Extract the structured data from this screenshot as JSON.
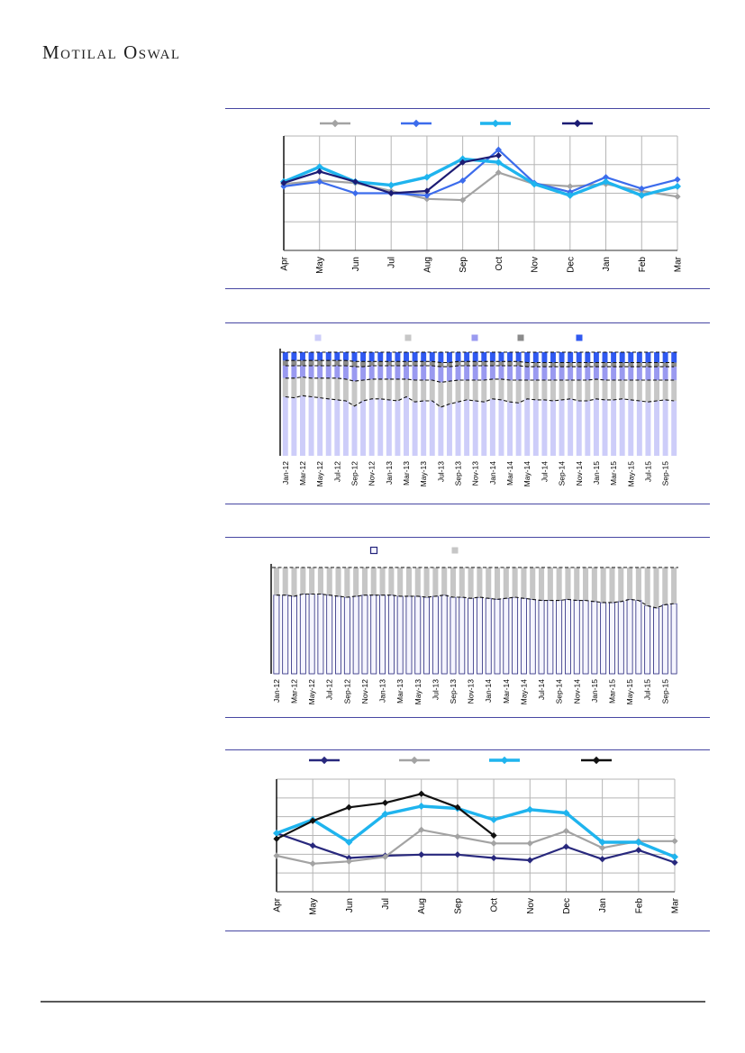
{
  "page": {
    "logo_text": "Motilal Oswal",
    "accent_line_color": "#4747a2",
    "footer_line_color": "#595959"
  },
  "chart_data": [
    {
      "id": "chart-1",
      "type": "line",
      "title": "",
      "xlabel": "",
      "ylabel": "",
      "ylim": [
        0,
        100
      ],
      "grid": true,
      "grid_rows": 4,
      "legend_position": "top",
      "legend_labels_visible": false,
      "y_axis_labels_visible": false,
      "categories": [
        "Apr",
        "May",
        "Jun",
        "Jul",
        "Aug",
        "Sep",
        "Oct",
        "Nov",
        "Dec",
        "Jan",
        "Feb",
        "Mar"
      ],
      "series": [
        {
          "name": "gray-line",
          "color": "#a3a3a3",
          "width": 2.2,
          "values": [
            58,
            61,
            59,
            52,
            45,
            44,
            68,
            58,
            56,
            58,
            52,
            47
          ]
        },
        {
          "name": "royal-blue-line",
          "color": "#3c6cec",
          "width": 2.2,
          "values": [
            56,
            60,
            50,
            50,
            48,
            61,
            88,
            59,
            51,
            64,
            54,
            62
          ]
        },
        {
          "name": "cyan-line",
          "color": "#1fb4ee",
          "width": 3.4,
          "values": [
            60,
            73,
            60,
            57,
            64,
            80,
            77,
            58,
            48,
            60,
            48,
            56
          ]
        },
        {
          "name": "navy-line",
          "color": "#1c1c74",
          "width": 2.2,
          "values": [
            59,
            69,
            60,
            50,
            52,
            77,
            83,
            null,
            null,
            null,
            null,
            null
          ]
        }
      ]
    },
    {
      "id": "chart-2",
      "type": "stacked-bar",
      "title": "",
      "xlabel": "",
      "ylabel": "",
      "ylim": [
        0,
        100
      ],
      "grid": false,
      "legend_position": "top",
      "legend_labels_visible": false,
      "y_axis_labels_visible": false,
      "tick_every": 2,
      "dashed_after": [
        0,
        1,
        2,
        3
      ],
      "dashed_top": true,
      "categories": [
        "Jan-12",
        "Feb-12",
        "Mar-12",
        "Apr-12",
        "May-12",
        "Jun-12",
        "Jul-12",
        "Aug-12",
        "Sep-12",
        "Oct-12",
        "Nov-12",
        "Dec-12",
        "Jan-13",
        "Feb-13",
        "Mar-13",
        "Apr-13",
        "May-13",
        "Jun-13",
        "Jul-13",
        "Aug-13",
        "Sep-13",
        "Oct-13",
        "Nov-13",
        "Dec-13",
        "Jan-14",
        "Feb-14",
        "Mar-14",
        "Apr-14",
        "May-14",
        "Jun-14",
        "Jul-14",
        "Aug-14",
        "Sep-14",
        "Oct-14",
        "Nov-14",
        "Dec-14",
        "Jan-15",
        "Feb-15",
        "Mar-15",
        "Apr-15",
        "May-15",
        "Jun-15",
        "Jul-15",
        "Aug-15",
        "Sep-15",
        "Oct-15"
      ],
      "series": [
        {
          "name": "lavender-segment",
          "color": "#cdcdf9",
          "values": [
            57,
            56,
            58,
            57,
            56,
            55,
            54,
            53,
            48,
            53,
            55,
            55,
            54,
            53,
            57,
            52,
            53,
            53,
            47,
            50,
            52,
            54,
            53,
            52,
            55,
            54,
            52,
            51,
            55,
            54,
            54,
            53,
            54,
            55,
            53,
            53,
            55,
            54,
            54,
            55,
            54,
            53,
            52,
            53,
            54,
            53
          ]
        },
        {
          "name": "light-gray-segment",
          "color": "#c7c7c7",
          "values": [
            18,
            19,
            18,
            18,
            19,
            20,
            21,
            21,
            24,
            20,
            19,
            19,
            20,
            21,
            17,
            21,
            20,
            20,
            24,
            22,
            21,
            19,
            20,
            21,
            19,
            20,
            21,
            22,
            18,
            19,
            19,
            20,
            19,
            18,
            20,
            20,
            19,
            19,
            19,
            18,
            19,
            20,
            21,
            20,
            19,
            20
          ]
        },
        {
          "name": "periwinkle-segment",
          "color": "#9a9af0",
          "values": [
            12,
            12,
            11,
            12,
            12,
            12,
            12,
            13,
            14,
            13,
            13,
            13,
            13,
            13,
            13,
            14,
            14,
            14,
            15,
            14,
            14,
            14,
            14,
            14,
            13,
            13,
            14,
            14,
            13,
            13,
            13,
            13,
            13,
            13,
            13,
            13,
            12,
            13,
            13,
            13,
            13,
            13,
            13,
            13,
            13,
            13
          ]
        },
        {
          "name": "dark-gray-segment",
          "color": "#8b8b8b",
          "values": [
            5,
            5,
            5,
            5,
            5,
            5,
            5,
            5,
            5,
            5,
            4,
            4,
            4,
            4,
            4,
            4,
            4,
            4,
            4,
            4,
            4,
            4,
            4,
            4,
            4,
            4,
            4,
            4,
            4,
            4,
            4,
            4,
            4,
            4,
            4,
            4,
            4,
            4,
            4,
            4,
            4,
            4,
            4,
            4,
            4,
            4
          ]
        },
        {
          "name": "bright-blue-segment",
          "color": "#3059f0",
          "values": [
            8,
            8,
            8,
            8,
            8,
            8,
            8,
            8,
            9,
            9,
            9,
            9,
            9,
            9,
            9,
            9,
            9,
            9,
            10,
            10,
            9,
            9,
            9,
            9,
            9,
            9,
            9,
            9,
            10,
            10,
            10,
            10,
            10,
            10,
            10,
            10,
            10,
            10,
            10,
            10,
            10,
            10,
            10,
            10,
            10,
            10
          ]
        }
      ]
    },
    {
      "id": "chart-3",
      "type": "stacked-bar",
      "title": "",
      "xlabel": "",
      "ylabel": "",
      "ylim": [
        0,
        100
      ],
      "grid": false,
      "legend_position": "top",
      "legend_labels_visible": false,
      "y_axis_labels_visible": false,
      "tick_every": 2,
      "dashed_after": [
        0
      ],
      "dashed_top": true,
      "categories": [
        "Jan-12",
        "Feb-12",
        "Mar-12",
        "Apr-12",
        "May-12",
        "Jun-12",
        "Jul-12",
        "Aug-12",
        "Sep-12",
        "Oct-12",
        "Nov-12",
        "Dec-12",
        "Jan-13",
        "Feb-13",
        "Mar-13",
        "Apr-13",
        "May-13",
        "Jun-13",
        "Jul-13",
        "Aug-13",
        "Sep-13",
        "Oct-13",
        "Nov-13",
        "Dec-13",
        "Jan-14",
        "Feb-14",
        "Mar-14",
        "Apr-14",
        "May-14",
        "Jun-14",
        "Jul-14",
        "Aug-14",
        "Sep-14",
        "Oct-14",
        "Nov-14",
        "Dec-14",
        "Jan-15",
        "Feb-15",
        "Mar-15",
        "Apr-15",
        "May-15",
        "Jun-15",
        "Jul-15",
        "Aug-15",
        "Sep-15",
        "Oct-15"
      ],
      "series": [
        {
          "name": "outlined-white-segment",
          "color": "#f5f5fe",
          "stroke": "#23237a",
          "values": [
            74,
            74,
            73,
            75,
            75,
            75,
            74,
            73,
            72,
            73,
            74,
            74,
            74,
            74,
            73,
            73,
            73,
            72,
            73,
            74,
            72,
            72,
            71,
            72,
            71,
            70,
            71,
            72,
            71,
            70,
            69,
            69,
            69,
            70,
            69,
            69,
            68,
            67,
            67,
            68,
            70,
            69,
            64,
            62,
            65,
            66
          ]
        },
        {
          "name": "gray-segment",
          "color": "#c6c6c6",
          "values": [
            26,
            26,
            27,
            25,
            25,
            25,
            26,
            27,
            28,
            27,
            26,
            26,
            26,
            26,
            27,
            27,
            27,
            28,
            27,
            26,
            28,
            28,
            29,
            28,
            29,
            30,
            29,
            28,
            29,
            30,
            31,
            31,
            31,
            30,
            31,
            31,
            32,
            33,
            33,
            32,
            30,
            31,
            36,
            38,
            35,
            34
          ]
        }
      ]
    },
    {
      "id": "chart-4",
      "type": "line",
      "title": "",
      "xlabel": "",
      "ylabel": "",
      "ylim": [
        0,
        100
      ],
      "grid": true,
      "grid_rows": 6,
      "legend_position": "top",
      "legend_labels_visible": false,
      "y_axis_labels_visible": false,
      "categories": [
        "Apr",
        "May",
        "Jun",
        "Jul",
        "Aug",
        "Sep",
        "Oct",
        "Nov",
        "Dec",
        "Jan",
        "Feb",
        "Mar"
      ],
      "series": [
        {
          "name": "navy-line",
          "color": "#28287d",
          "width": 2.2,
          "values": [
            52,
            41,
            30,
            32,
            33,
            33,
            30,
            28,
            40,
            29,
            37,
            26
          ]
        },
        {
          "name": "gray-line",
          "color": "#a3a3a3",
          "width": 2.2,
          "values": [
            32,
            25,
            27,
            31,
            55,
            49,
            43,
            43,
            54,
            39,
            45,
            45
          ]
        },
        {
          "name": "cyan-line",
          "color": "#1fb4ee",
          "width": 3.4,
          "values": [
            52,
            64,
            44,
            69,
            76,
            74,
            64,
            73,
            70,
            44,
            44,
            31
          ]
        },
        {
          "name": "black-line",
          "color": "#111111",
          "width": 2.2,
          "values": [
            47,
            63,
            75,
            79,
            87,
            75,
            50,
            null,
            null,
            null,
            null,
            null
          ]
        }
      ]
    }
  ]
}
